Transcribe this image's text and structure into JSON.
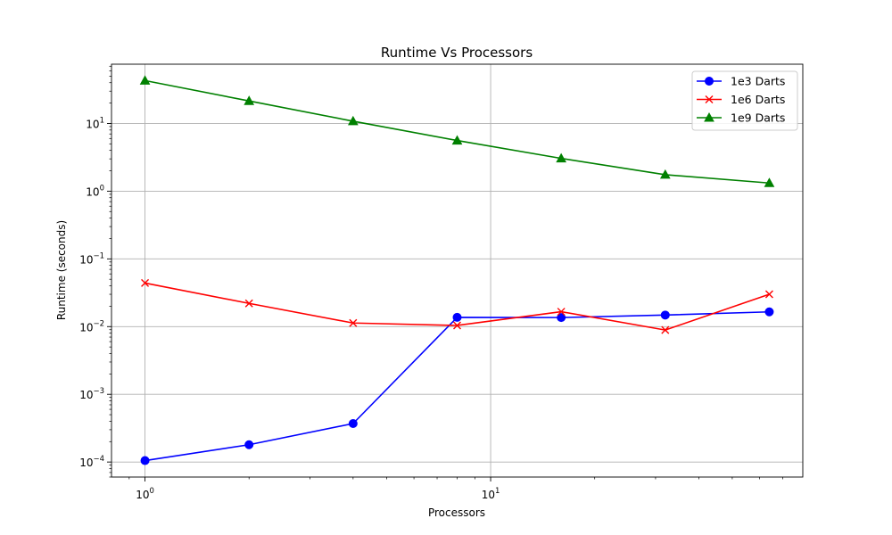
{
  "chart_data": {
    "type": "line",
    "title": "Runtime Vs Processors",
    "xlabel": "Processors",
    "ylabel": "Runtime (seconds)",
    "xscale": "log",
    "yscale": "log",
    "xlim": [
      0.8,
      80
    ],
    "ylim": [
      6e-05,
      75
    ],
    "grid": "major",
    "legend_position": "top-right",
    "x": [
      1,
      2,
      4,
      8,
      16,
      32,
      64
    ],
    "x_ticks": [
      {
        "value": 1,
        "base": "10",
        "exp": "0"
      },
      {
        "value": 10,
        "base": "10",
        "exp": "1"
      }
    ],
    "y_ticks": [
      {
        "value": 0.0001,
        "base": "10",
        "exp": "−4"
      },
      {
        "value": 0.001,
        "base": "10",
        "exp": "−3"
      },
      {
        "value": 0.01,
        "base": "10",
        "exp": "−2"
      },
      {
        "value": 0.1,
        "base": "10",
        "exp": "−1"
      },
      {
        "value": 1,
        "base": "10",
        "exp": "0"
      },
      {
        "value": 10,
        "base": "10",
        "exp": "1"
      }
    ],
    "series": [
      {
        "name": "1e3 Darts",
        "color": "#0000ff",
        "marker": "circle",
        "values": [
          0.000105,
          0.00018,
          0.00037,
          0.0137,
          0.0136,
          0.0148,
          0.0165
        ]
      },
      {
        "name": "1e6 Darts",
        "color": "#ff0000",
        "marker": "x",
        "values": [
          0.044,
          0.022,
          0.0113,
          0.0104,
          0.0166,
          0.0089,
          0.03
        ]
      },
      {
        "name": "1e9 Darts",
        "color": "#008000",
        "marker": "triangle",
        "values": [
          43,
          21.5,
          10.8,
          5.6,
          3.05,
          1.75,
          1.32
        ]
      }
    ]
  }
}
